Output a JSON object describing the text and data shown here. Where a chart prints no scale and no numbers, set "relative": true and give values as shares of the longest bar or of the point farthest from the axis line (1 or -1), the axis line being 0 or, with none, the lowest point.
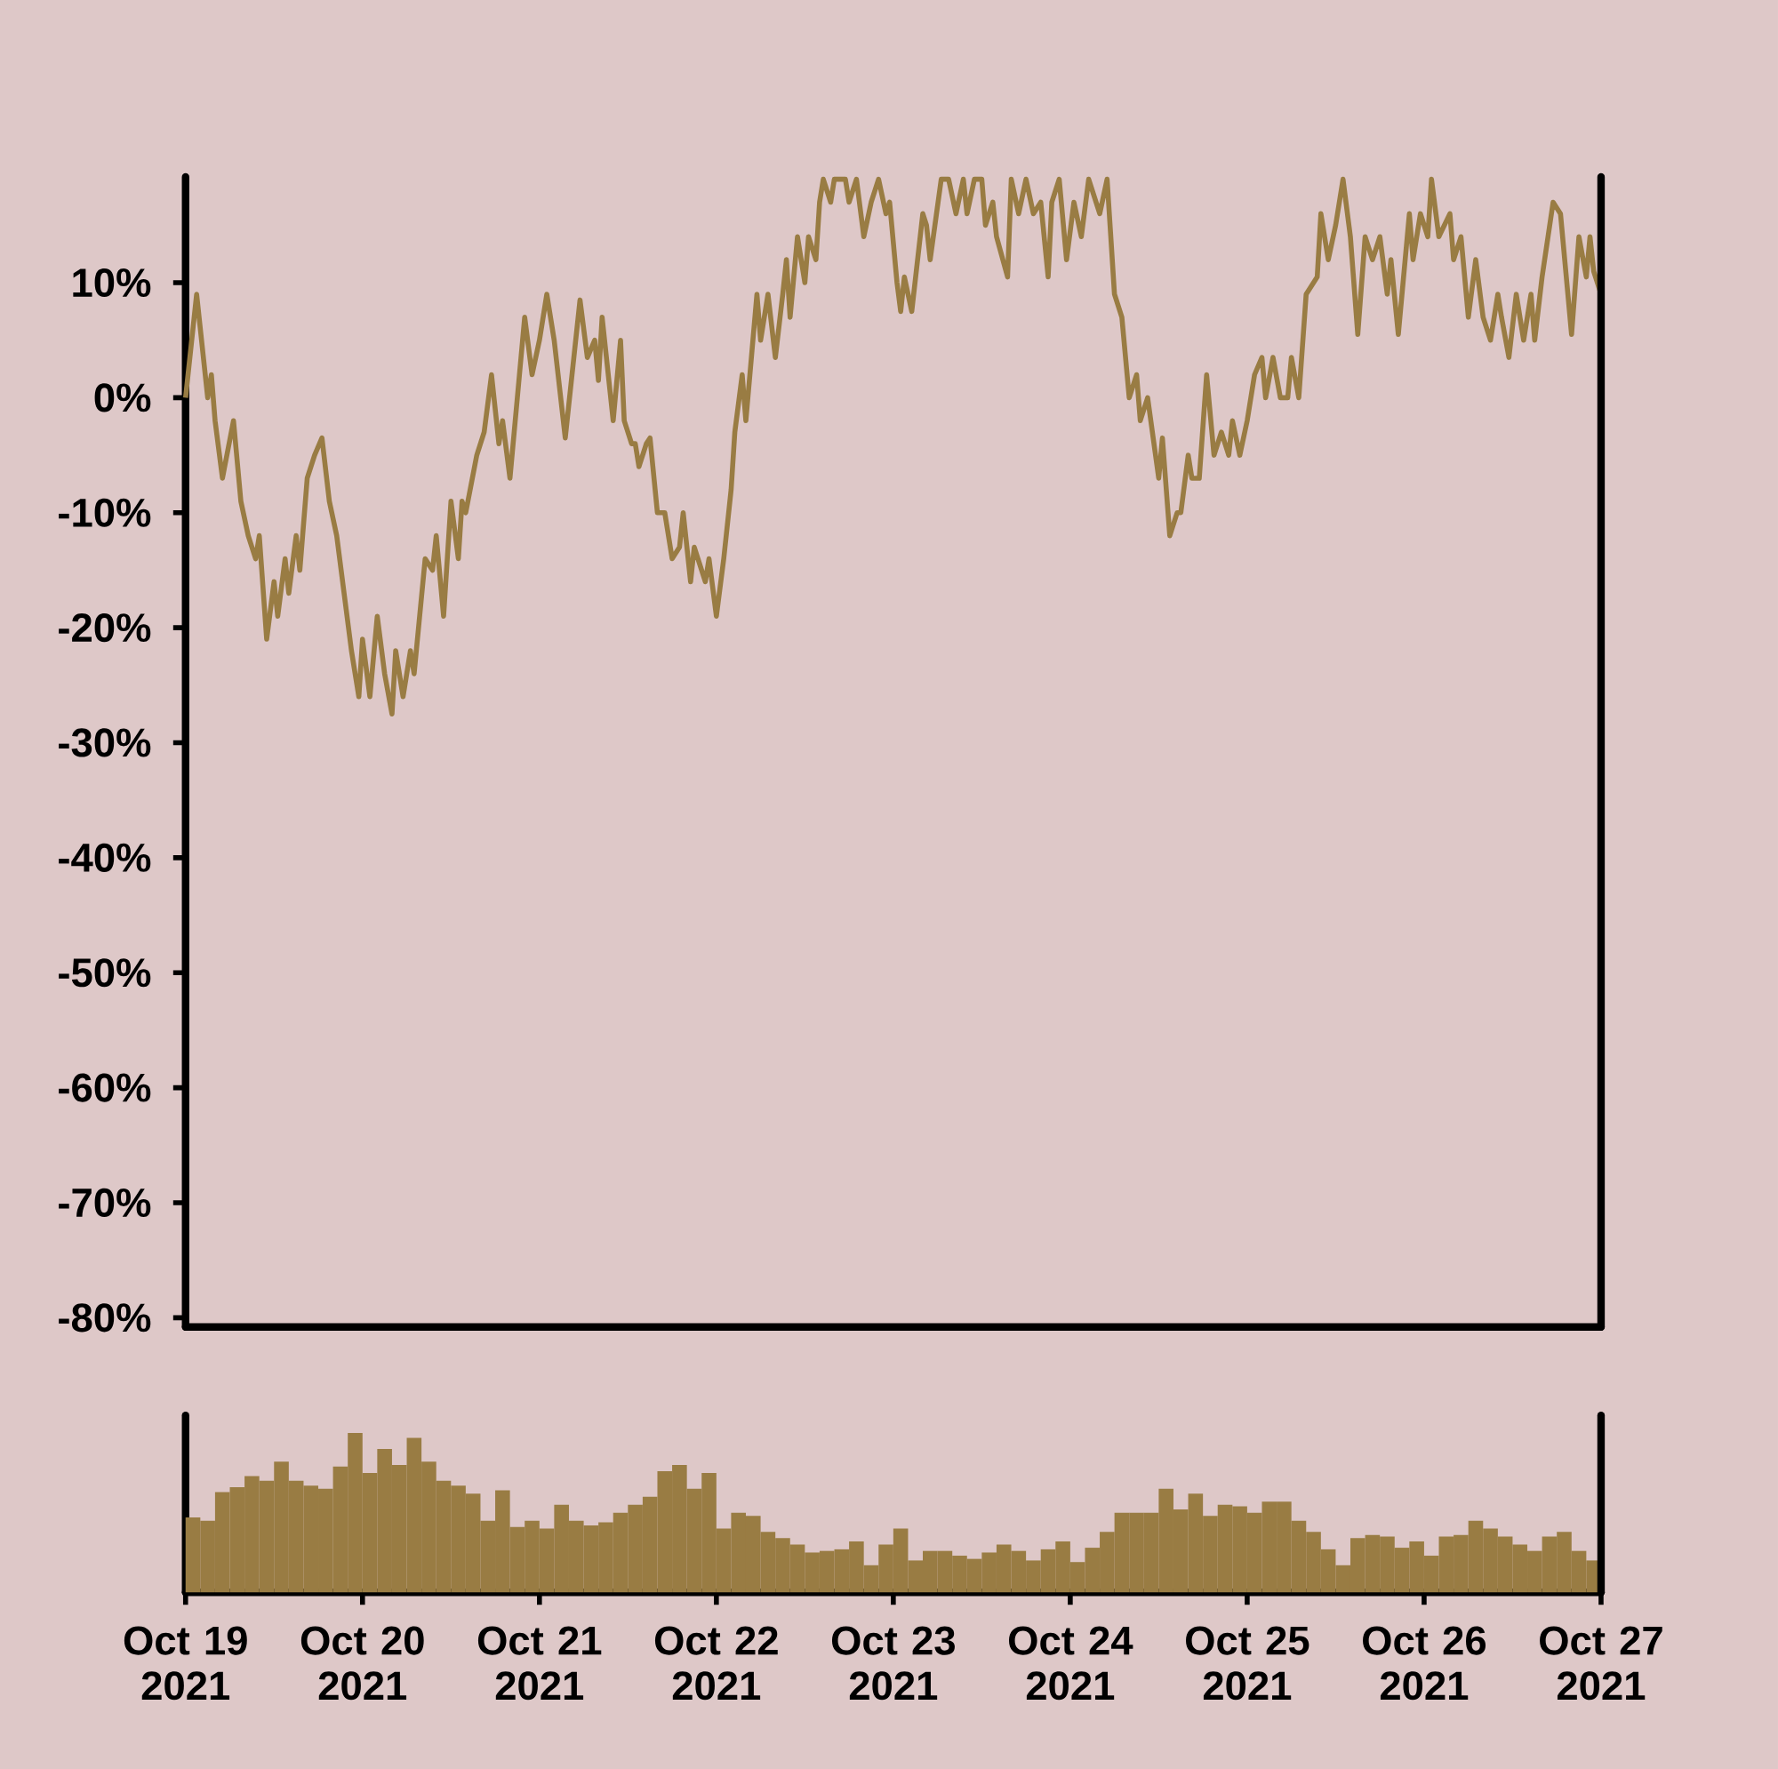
{
  "chart_data": [
    {
      "type": "line",
      "color": "#997c43",
      "xlim": [
        "2021-10-19",
        "2021-10-27"
      ],
      "ylim": [
        -80.8,
        19.2
      ],
      "tick_labels": "y",
      "yticks": [
        {
          "value": 10,
          "label": "10%"
        },
        {
          "value": 0,
          "label": "0%"
        },
        {
          "value": -10,
          "label": "-10%"
        },
        {
          "value": -20,
          "label": "-20%"
        },
        {
          "value": -30,
          "label": "-30%"
        },
        {
          "value": -40,
          "label": "-40%"
        },
        {
          "value": -50,
          "label": "-50%"
        },
        {
          "value": -60,
          "label": "-60%"
        },
        {
          "value": -70,
          "label": "-70%"
        },
        {
          "value": -80,
          "label": "-80%"
        }
      ],
      "x": [
        "2021-10-19T00:00",
        "2021-10-19T01:30",
        "2021-10-19T03:00",
        "2021-10-19T03:30",
        "2021-10-19T04:00",
        "2021-10-19T05:00",
        "2021-10-19T06:30",
        "2021-10-19T07:30",
        "2021-10-19T08:30",
        "2021-10-19T09:30",
        "2021-10-19T10:00",
        "2021-10-19T11:00",
        "2021-10-19T12:00",
        "2021-10-19T12:30",
        "2021-10-19T13:30",
        "2021-10-19T14:00",
        "2021-10-19T15:00",
        "2021-10-19T15:30",
        "2021-10-19T16:30",
        "2021-10-19T17:30",
        "2021-10-19T18:30",
        "2021-10-19T19:30",
        "2021-10-19T20:30",
        "2021-10-19T22:30",
        "2021-10-19T23:30",
        "2021-10-20T00:00",
        "2021-10-20T01:00",
        "2021-10-20T02:00",
        "2021-10-20T03:00",
        "2021-10-20T04:00",
        "2021-10-20T04:30",
        "2021-10-20T05:30",
        "2021-10-20T06:30",
        "2021-10-20T07:00",
        "2021-10-20T08:30",
        "2021-10-20T09:30",
        "2021-10-20T10:00",
        "2021-10-20T11:00",
        "2021-10-20T12:00",
        "2021-10-20T13:00",
        "2021-10-20T13:30",
        "2021-10-20T14:00",
        "2021-10-20T15:30",
        "2021-10-20T16:30",
        "2021-10-20T17:30",
        "2021-10-20T18:30",
        "2021-10-20T19:00",
        "2021-10-20T20:00",
        "2021-10-20T21:00",
        "2021-10-20T22:00",
        "2021-10-20T23:00",
        "2021-10-21T00:00",
        "2021-10-21T01:00",
        "2021-10-21T02:00",
        "2021-10-21T03:30",
        "2021-10-21T05:30",
        "2021-10-21T06:30",
        "2021-10-21T07:30",
        "2021-10-21T08:00",
        "2021-10-21T08:30",
        "2021-10-21T10:00",
        "2021-10-21T11:00",
        "2021-10-21T11:30",
        "2021-10-21T12:30",
        "2021-10-21T13:00",
        "2021-10-21T13:30",
        "2021-10-21T14:30",
        "2021-10-21T15:00",
        "2021-10-21T16:00",
        "2021-10-21T17:00",
        "2021-10-21T18:00",
        "2021-10-21T19:00",
        "2021-10-21T19:30",
        "2021-10-21T20:30",
        "2021-10-21T21:00",
        "2021-10-21T22:30",
        "2021-10-21T23:00",
        "2021-10-22T00:00",
        "2021-10-22T01:00",
        "2021-10-22T02:00",
        "2021-10-22T02:30",
        "2021-10-22T03:30",
        "2021-10-22T04:00",
        "2021-10-22T05:30",
        "2021-10-22T06:00",
        "2021-10-22T07:00",
        "2021-10-22T08:00",
        "2021-10-22T09:00",
        "2021-10-22T09:30",
        "2021-10-22T10:00",
        "2021-10-22T11:00",
        "2021-10-22T12:00",
        "2021-10-22T12:30",
        "2021-10-22T13:30",
        "2021-10-22T14:00",
        "2021-10-22T14:30",
        "2021-10-22T15:30",
        "2021-10-22T16:00",
        "2021-10-22T17:30",
        "2021-10-22T18:00",
        "2021-10-22T19:00",
        "2021-10-22T20:00",
        "2021-10-22T21:00",
        "2021-10-22T22:00",
        "2021-10-22T23:00",
        "2021-10-22T23:30",
        "2021-10-23T00:30",
        "2021-10-23T01:00",
        "2021-10-23T01:30",
        "2021-10-23T02:30",
        "2021-10-23T04:00",
        "2021-10-23T04:30",
        "2021-10-23T05:00",
        "2021-10-23T06:30",
        "2021-10-23T07:30",
        "2021-10-23T08:30",
        "2021-10-23T09:30",
        "2021-10-23T10:00",
        "2021-10-23T11:00",
        "2021-10-23T12:00",
        "2021-10-23T12:30",
        "2021-10-23T13:30",
        "2021-10-23T14:00",
        "2021-10-23T15:30",
        "2021-10-23T16:00",
        "2021-10-23T17:00",
        "2021-10-23T18:00",
        "2021-10-23T19:00",
        "2021-10-23T20:00",
        "2021-10-23T21:00",
        "2021-10-23T21:30",
        "2021-10-23T22:30",
        "2021-10-23T23:30",
        "2021-10-24T00:30",
        "2021-10-24T01:30",
        "2021-10-24T02:30",
        "2021-10-24T04:00",
        "2021-10-24T05:00",
        "2021-10-24T06:00",
        "2021-10-24T07:00",
        "2021-10-24T08:00",
        "2021-10-24T09:00",
        "2021-10-24T09:30",
        "2021-10-24T10:30",
        "2021-10-24T12:00",
        "2021-10-24T12:30",
        "2021-10-24T13:30",
        "2021-10-24T14:30",
        "2021-10-24T15:00",
        "2021-10-24T16:00",
        "2021-10-24T16:30",
        "2021-10-24T17:30",
        "2021-10-24T18:30",
        "2021-10-24T19:30",
        "2021-10-24T20:30",
        "2021-10-24T21:30",
        "2021-10-24T22:00",
        "2021-10-24T23:00",
        "2021-10-25T00:00",
        "2021-10-25T01:00",
        "2021-10-25T02:00",
        "2021-10-25T02:30",
        "2021-10-25T03:30",
        "2021-10-25T04:30",
        "2021-10-25T05:30",
        "2021-10-25T06:00",
        "2021-10-25T07:00",
        "2021-10-25T08:00",
        "2021-10-25T09:30",
        "2021-10-25T10:00",
        "2021-10-25T11:00",
        "2021-10-25T12:00",
        "2021-10-25T13:00",
        "2021-10-25T14:00",
        "2021-10-25T15:00",
        "2021-10-25T16:00",
        "2021-10-25T17:00",
        "2021-10-25T18:00",
        "2021-10-25T19:00",
        "2021-10-25T19:30",
        "2021-10-25T20:30",
        "2021-10-25T22:00",
        "2021-10-25T22:30",
        "2021-10-25T23:30",
        "2021-10-26T00:30",
        "2021-10-26T01:00",
        "2021-10-26T02:00",
        "2021-10-26T03:30",
        "2021-10-26T04:00",
        "2021-10-26T05:00",
        "2021-10-26T06:00",
        "2021-10-26T07:00",
        "2021-10-26T08:00",
        "2021-10-26T09:00",
        "2021-10-26T10:00",
        "2021-10-26T10:30",
        "2021-10-26T11:30",
        "2021-10-26T12:30",
        "2021-10-26T13:30",
        "2021-10-26T14:30",
        "2021-10-26T15:00",
        "2021-10-26T16:00",
        "2021-10-26T17:30",
        "2021-10-26T18:30",
        "2021-10-26T20:00",
        "2021-10-26T21:00",
        "2021-10-26T22:00",
        "2021-10-26T22:30",
        "2021-10-26T23:00",
        "2021-10-27T00:00"
      ],
      "values": [
        0,
        9,
        0,
        2,
        -2,
        -7,
        -2,
        -9,
        -12,
        -14,
        -12,
        -21,
        -16,
        -19,
        -14,
        -17,
        -12,
        -15,
        -7,
        -5,
        -3.5,
        -9,
        -12,
        -22,
        -26,
        -21,
        -26,
        -19,
        -24,
        -27.5,
        -22,
        -26,
        -22,
        -24,
        -14,
        -15,
        -12,
        -19,
        -9,
        -14,
        -9,
        -10,
        -5,
        -3,
        2,
        -4,
        -2,
        -7,
        0,
        7,
        2,
        5,
        9,
        5,
        -3.5,
        8.5,
        3.5,
        5,
        1.5,
        7,
        -2,
        5,
        -2,
        -4,
        -4,
        -6,
        -4,
        -3.5,
        -10,
        -10,
        -14,
        -13,
        -10,
        -16,
        -13,
        -16,
        -14,
        -19,
        -14,
        -8,
        -3,
        2,
        -2,
        9,
        5,
        9,
        3.5,
        9,
        12,
        7,
        14,
        10,
        14,
        12,
        17,
        19,
        17,
        19,
        19,
        17,
        19,
        14,
        17,
        19,
        16,
        17,
        10,
        7.5,
        10.5,
        7.5,
        16,
        15,
        12,
        19,
        19,
        16,
        19,
        16,
        19,
        19,
        15,
        17,
        14,
        10.5,
        19,
        16,
        19,
        16,
        17,
        10.5,
        17,
        19,
        12,
        17,
        14,
        19,
        16,
        19,
        9,
        7,
        0,
        2,
        -2,
        0,
        -7,
        -3.5,
        -12,
        -10,
        -10,
        -5,
        -7,
        -7,
        2,
        -5,
        -3,
        -5,
        -2,
        -5,
        -2,
        2,
        3.5,
        0,
        3.5,
        0,
        0,
        3.5,
        0,
        9,
        10.5,
        16,
        12,
        15,
        19,
        14,
        5.5,
        14,
        12,
        14,
        9,
        12,
        5.5,
        16,
        12,
        16,
        14,
        19,
        14,
        16,
        12,
        14,
        7,
        12,
        7,
        5,
        9,
        7,
        3.5,
        9,
        5,
        9,
        5,
        10.5,
        17,
        16,
        5.5,
        14,
        10.5,
        14,
        11,
        9
      ]
    },
    {
      "type": "bar",
      "relative": true,
      "color": "#997c43",
      "xlim": [
        "2021-10-19",
        "2021-10-27"
      ],
      "tick_labels": "x",
      "xticks": [
        {
          "value": "2021-10-19",
          "label": "Oct 19 2021"
        },
        {
          "value": "2021-10-20",
          "label": "Oct 20 2021"
        },
        {
          "value": "2021-10-21",
          "label": "Oct 21 2021"
        },
        {
          "value": "2021-10-22",
          "label": "Oct 22 2021"
        },
        {
          "value": "2021-10-23",
          "label": "Oct 23 2021"
        },
        {
          "value": "2021-10-24",
          "label": "Oct 24 2021"
        },
        {
          "value": "2021-10-25",
          "label": "Oct 25 2021"
        },
        {
          "value": "2021-10-26",
          "label": "Oct 26 2021"
        },
        {
          "value": "2021-10-27",
          "label": "Oct 27 2021"
        }
      ],
      "x": [
        "2021-10-19T01:00",
        "2021-10-19T03:00",
        "2021-10-19T05:00",
        "2021-10-19T07:00",
        "2021-10-19T09:00",
        "2021-10-19T11:00",
        "2021-10-19T13:00",
        "2021-10-19T15:00",
        "2021-10-19T17:00",
        "2021-10-19T19:00",
        "2021-10-19T21:00",
        "2021-10-19T23:00",
        "2021-10-20T01:00",
        "2021-10-20T03:00",
        "2021-10-20T05:00",
        "2021-10-20T07:00",
        "2021-10-20T09:00",
        "2021-10-20T11:00",
        "2021-10-20T13:00",
        "2021-10-20T15:00",
        "2021-10-20T17:00",
        "2021-10-20T19:00",
        "2021-10-20T21:00",
        "2021-10-20T23:00",
        "2021-10-21T01:00",
        "2021-10-21T03:00",
        "2021-10-21T05:00",
        "2021-10-21T07:00",
        "2021-10-21T09:00",
        "2021-10-21T11:00",
        "2021-10-21T13:00",
        "2021-10-21T15:00",
        "2021-10-21T17:00",
        "2021-10-21T19:00",
        "2021-10-21T21:00",
        "2021-10-21T23:00",
        "2021-10-22T01:00",
        "2021-10-22T03:00",
        "2021-10-22T05:00",
        "2021-10-22T07:00",
        "2021-10-22T09:00",
        "2021-10-22T11:00",
        "2021-10-22T13:00",
        "2021-10-22T15:00",
        "2021-10-22T17:00",
        "2021-10-22T19:00",
        "2021-10-22T21:00",
        "2021-10-22T23:00",
        "2021-10-23T01:00",
        "2021-10-23T03:00",
        "2021-10-23T05:00",
        "2021-10-23T07:00",
        "2021-10-23T09:00",
        "2021-10-23T11:00",
        "2021-10-23T13:00",
        "2021-10-23T15:00",
        "2021-10-23T17:00",
        "2021-10-23T19:00",
        "2021-10-23T21:00",
        "2021-10-23T23:00",
        "2021-10-24T01:00",
        "2021-10-24T03:00",
        "2021-10-24T05:00",
        "2021-10-24T07:00",
        "2021-10-24T09:00",
        "2021-10-24T11:00",
        "2021-10-24T13:00",
        "2021-10-24T15:00",
        "2021-10-24T17:00",
        "2021-10-24T19:00",
        "2021-10-24T21:00",
        "2021-10-24T23:00",
        "2021-10-25T01:00",
        "2021-10-25T03:00",
        "2021-10-25T05:00",
        "2021-10-25T07:00",
        "2021-10-25T09:00",
        "2021-10-25T11:00",
        "2021-10-25T13:00",
        "2021-10-25T15:00",
        "2021-10-25T17:00",
        "2021-10-25T19:00",
        "2021-10-25T21:00",
        "2021-10-25T23:00",
        "2021-10-26T01:00",
        "2021-10-26T03:00",
        "2021-10-26T05:00",
        "2021-10-26T07:00",
        "2021-10-26T09:00",
        "2021-10-26T11:00",
        "2021-10-26T13:00",
        "2021-10-26T15:00",
        "2021-10-26T17:00",
        "2021-10-26T19:00",
        "2021-10-26T21:00",
        "2021-10-26T23:00"
      ],
      "values": [
        0.47,
        0.45,
        0.63,
        0.66,
        0.73,
        0.7,
        0.82,
        0.7,
        0.67,
        0.65,
        0.79,
        1.0,
        0.75,
        0.9,
        0.8,
        0.97,
        0.82,
        0.7,
        0.67,
        0.62,
        0.45,
        0.64,
        0.41,
        0.45,
        0.4,
        0.55,
        0.45,
        0.42,
        0.44,
        0.5,
        0.55,
        0.6,
        0.76,
        0.8,
        0.65,
        0.75,
        0.4,
        0.5,
        0.48,
        0.38,
        0.34,
        0.3,
        0.25,
        0.26,
        0.27,
        0.32,
        0.17,
        0.3,
        0.4,
        0.2,
        0.26,
        0.26,
        0.23,
        0.21,
        0.25,
        0.3,
        0.26,
        0.2,
        0.27,
        0.32,
        0.19,
        0.28,
        0.38,
        0.5,
        0.5,
        0.5,
        0.65,
        0.52,
        0.62,
        0.48,
        0.55,
        0.54,
        0.5,
        0.57,
        0.57,
        0.45,
        0.38,
        0.27,
        0.17,
        0.34,
        0.36,
        0.35,
        0.28,
        0.32,
        0.23,
        0.35,
        0.36,
        0.45,
        0.4,
        0.35,
        0.3,
        0.26,
        0.35,
        0.38,
        0.26,
        0.2
      ]
    }
  ]
}
